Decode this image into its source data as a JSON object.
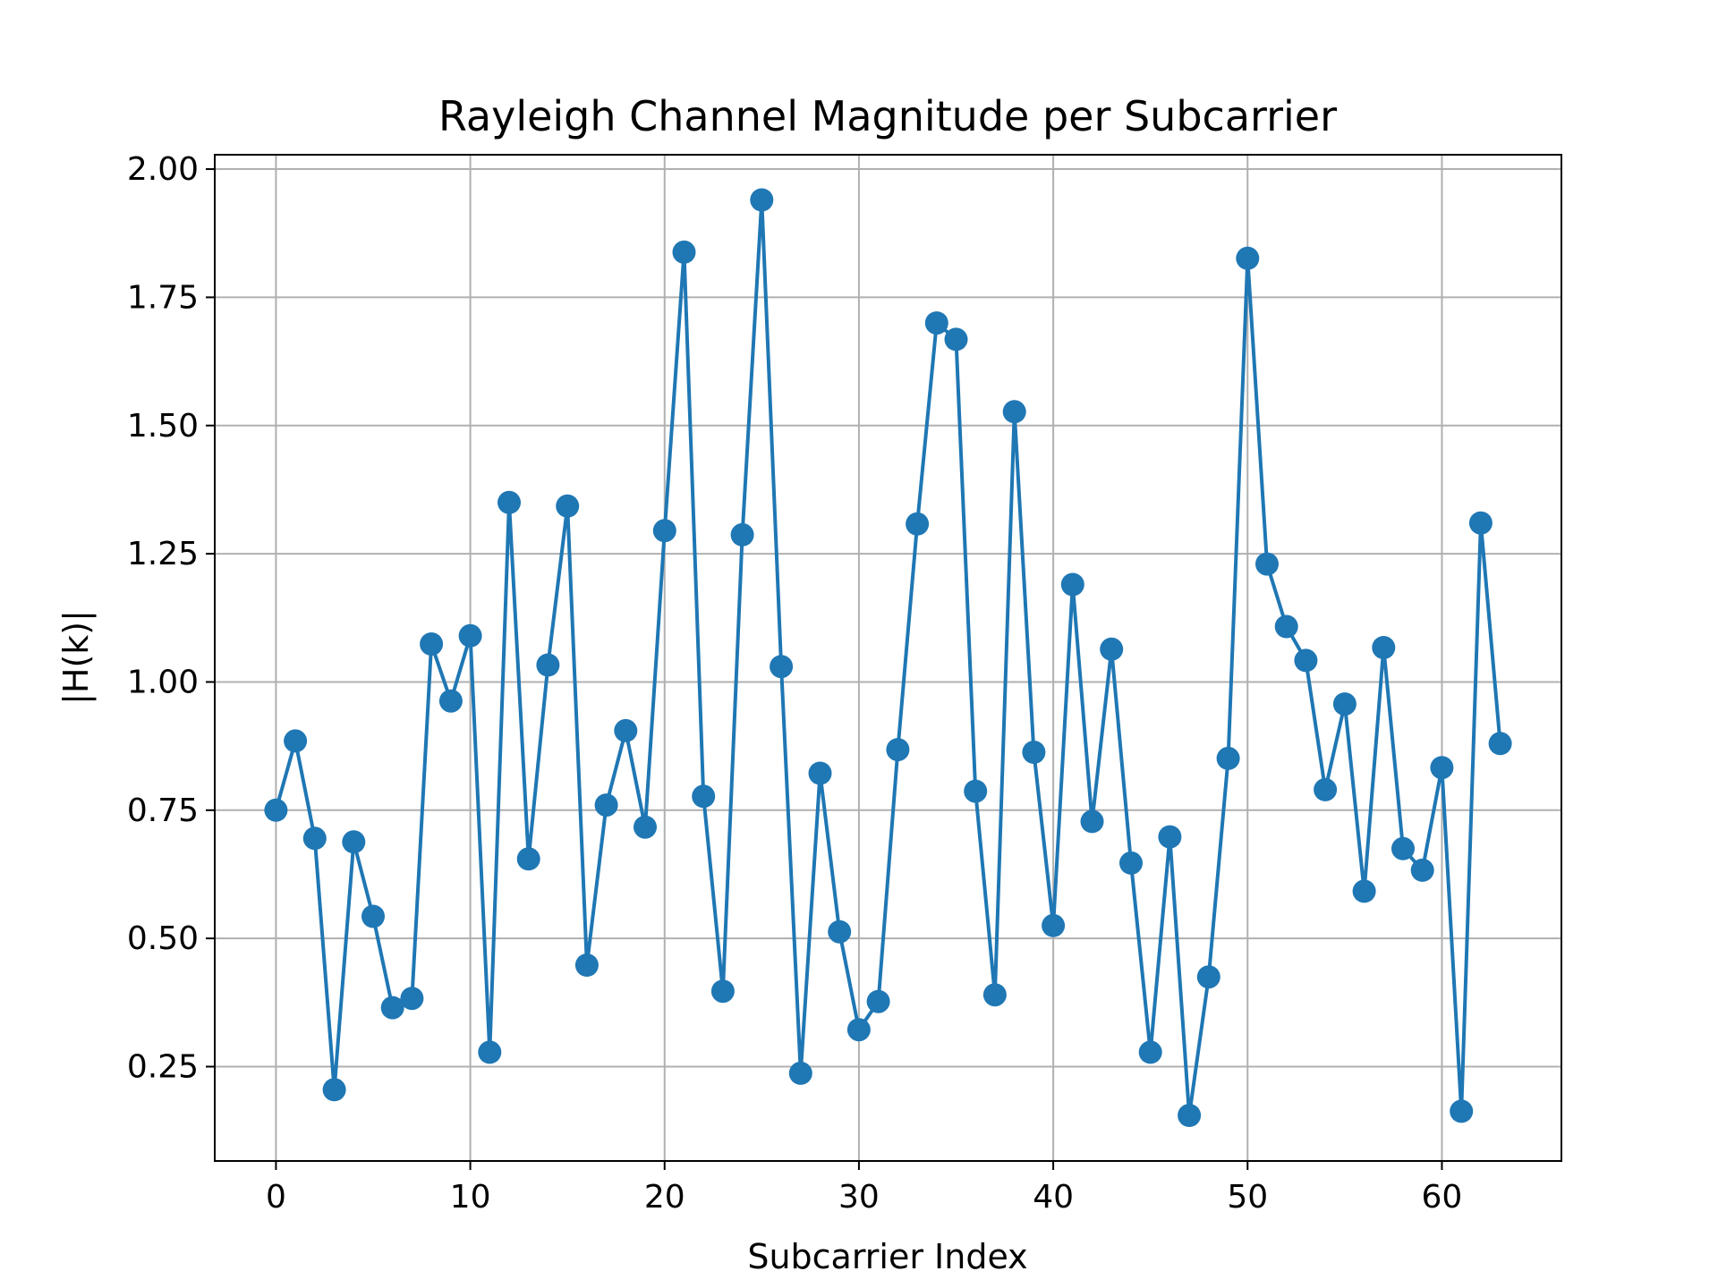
{
  "chart_data": {
    "type": "line",
    "title": "Rayleigh Channel Magnitude per Subcarrier",
    "xlabel": "Subcarrier Index",
    "ylabel": "|H(k)|",
    "xlim": [
      -3.15,
      66.15
    ],
    "ylim": [
      0.066,
      2.028
    ],
    "xticks": [
      0,
      10,
      20,
      30,
      40,
      50,
      60
    ],
    "xtick_labels": [
      "0",
      "10",
      "20",
      "30",
      "40",
      "50",
      "60"
    ],
    "yticks": [
      0.25,
      0.5,
      0.75,
      1.0,
      1.25,
      1.5,
      1.75,
      2.0
    ],
    "ytick_labels": [
      "0.25",
      "0.50",
      "0.75",
      "1.00",
      "1.25",
      "1.50",
      "1.75",
      "2.00"
    ],
    "grid": true,
    "marker": "circle",
    "colors": {
      "series": "#1f77b4",
      "grid": "#b0b0b0",
      "axes": "#000000"
    },
    "series": [
      {
        "x": [
          0,
          1,
          2,
          3,
          4,
          5,
          6,
          7,
          8,
          9,
          10,
          11,
          12,
          13,
          14,
          15,
          16,
          17,
          18,
          19,
          20,
          21,
          22,
          23,
          24,
          25,
          26,
          27,
          28,
          29,
          30,
          31,
          32,
          33,
          34,
          35,
          36,
          37,
          38,
          39,
          40,
          41,
          42,
          43,
          44,
          45,
          46,
          47,
          48,
          49,
          50,
          51,
          52,
          53,
          54,
          55,
          56,
          57,
          58,
          59,
          60,
          61,
          62,
          63
        ],
        "values": [
          0.75,
          0.885,
          0.695,
          0.205,
          0.688,
          0.543,
          0.365,
          0.383,
          1.074,
          0.963,
          1.09,
          0.278,
          1.35,
          0.655,
          1.033,
          1.343,
          0.448,
          0.76,
          0.905,
          0.717,
          1.295,
          1.838,
          0.777,
          0.397,
          1.287,
          1.94,
          1.03,
          0.237,
          0.822,
          0.513,
          0.322,
          0.377,
          0.868,
          1.308,
          1.7,
          1.668,
          0.787,
          0.39,
          1.527,
          0.863,
          0.525,
          1.19,
          0.728,
          1.064,
          0.647,
          0.278,
          0.698,
          0.155,
          0.425,
          0.851,
          1.826,
          1.23,
          1.108,
          1.042,
          0.79,
          0.957,
          0.592,
          1.067,
          0.675,
          0.633,
          0.833,
          0.163,
          1.31,
          0.88
        ]
      }
    ]
  }
}
